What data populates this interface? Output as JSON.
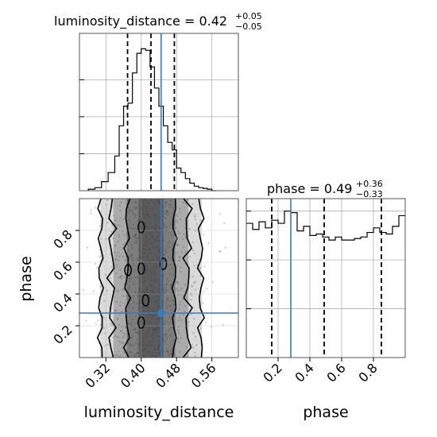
{
  "chart_data": {
    "type": "corner",
    "parameters": [
      "luminosity_distance",
      "phase"
    ],
    "truths": {
      "luminosity_distance": 0.445,
      "phase": 0.28
    },
    "colors": {
      "truth": "#3b7bb4",
      "hist": "#000000",
      "grid": "#b0b0b0",
      "samples": "#7a7a7a"
    },
    "luminosity_distance": {
      "title": {
        "main": "luminosity_distance = 0.42",
        "plus": "+0.05",
        "minus": "−0.05"
      },
      "xlabel": "luminosity_distance",
      "xlim": [
        0.26,
        0.62
      ],
      "ticks": [
        0.32,
        0.4,
        0.48,
        0.56
      ],
      "tick_labels": [
        "0.32",
        "0.40",
        "0.48",
        "0.56"
      ],
      "quantiles": [
        0.369,
        0.422,
        0.475
      ],
      "histogram": {
        "edges": [
          0.28,
          0.295,
          0.31,
          0.325,
          0.34,
          0.35,
          0.36,
          0.37,
          0.38,
          0.39,
          0.4,
          0.41,
          0.42,
          0.43,
          0.44,
          0.45,
          0.46,
          0.47,
          0.48,
          0.49,
          0.5,
          0.51,
          0.52,
          0.53,
          0.54,
          0.55,
          0.56,
          0.57
        ],
        "counts": [
          0.01,
          0.02,
          0.06,
          0.12,
          0.23,
          0.43,
          0.56,
          0.58,
          0.78,
          0.91,
          0.94,
          0.93,
          0.82,
          0.68,
          0.56,
          0.43,
          0.32,
          0.27,
          0.15,
          0.12,
          0.08,
          0.05,
          0.03,
          0.02,
          0.015,
          0.01,
          0.0
        ]
      }
    },
    "phase": {
      "title": {
        "main": "phase = 0.49",
        "plus": "+0.36",
        "minus": "−0.33"
      },
      "xlabel": "phase",
      "ylabel": "phase",
      "xlim": [
        0.0,
        1.0
      ],
      "ticks": [
        0.2,
        0.4,
        0.6,
        0.8
      ],
      "tick_labels": [
        "0.2",
        "0.4",
        "0.6",
        "0.8"
      ],
      "quantiles": [
        0.16,
        0.49,
        0.85
      ],
      "histogram": {
        "edges": [
          0.0,
          0.04,
          0.08,
          0.12,
          0.16,
          0.2,
          0.24,
          0.28,
          0.32,
          0.36,
          0.4,
          0.44,
          0.48,
          0.52,
          0.56,
          0.6,
          0.64,
          0.68,
          0.72,
          0.76,
          0.8,
          0.84,
          0.88,
          0.92,
          0.96,
          1.0
        ],
        "counts": [
          0.88,
          0.84,
          0.89,
          0.85,
          0.9,
          0.88,
          0.96,
          0.95,
          0.83,
          0.86,
          0.8,
          0.81,
          0.79,
          0.77,
          0.79,
          0.77,
          0.77,
          0.78,
          0.79,
          0.82,
          0.85,
          0.82,
          0.81,
          0.86,
          0.93
        ]
      }
    }
  }
}
